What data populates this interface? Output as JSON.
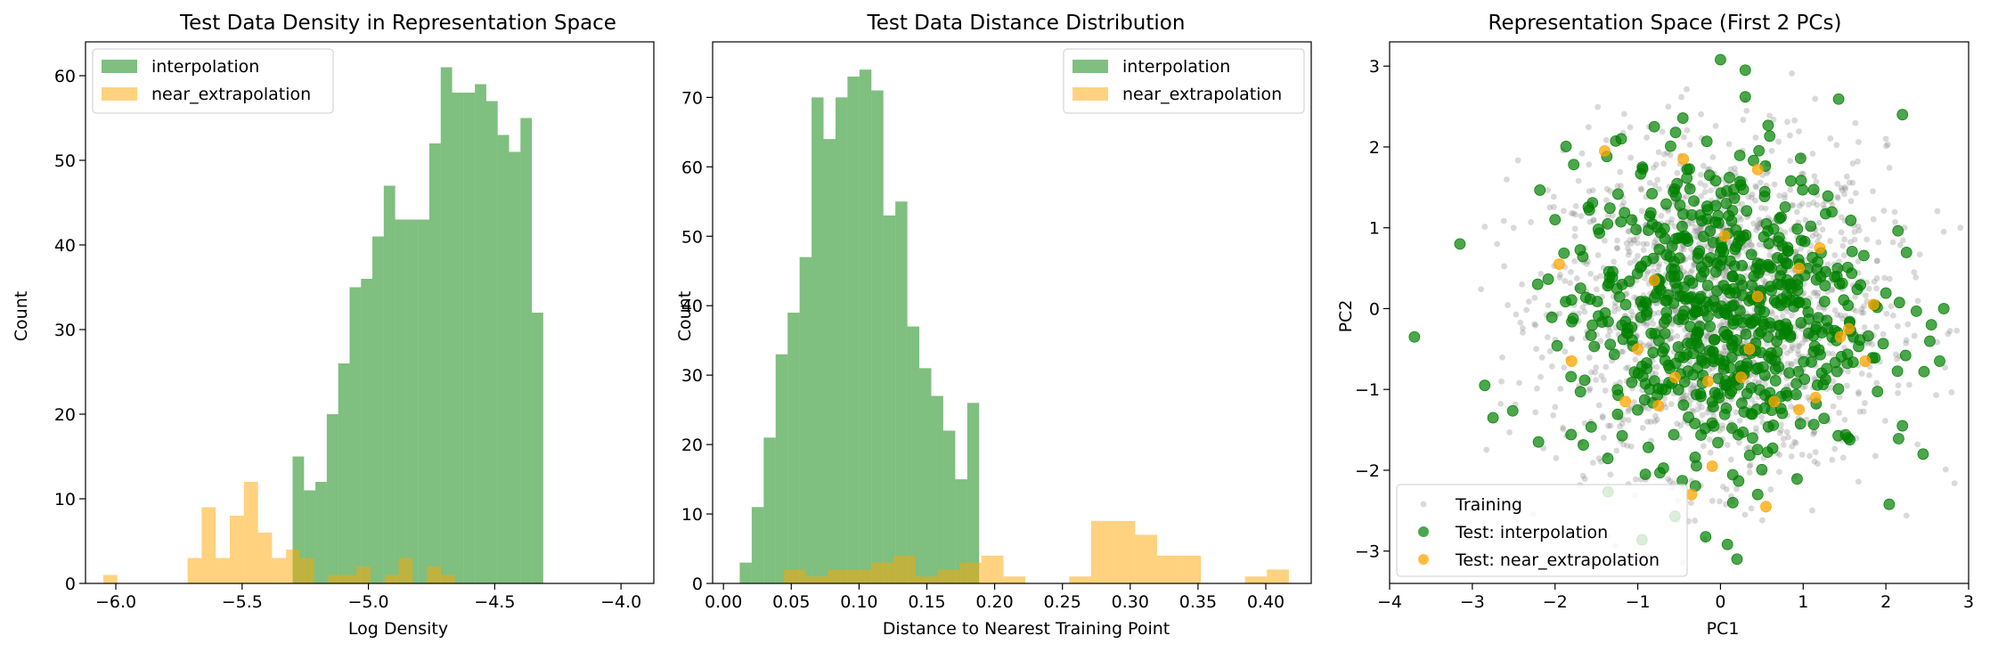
{
  "figure": {
    "background": "#ffffff",
    "colors": {
      "interpolation": "#008000",
      "near_extrapolation": "#ffa500",
      "training": "#808080"
    }
  },
  "chart_data": [
    {
      "type": "histogram",
      "title": "Test Data Density in Representation Space",
      "xlabel": "Log Density",
      "ylabel": "Count",
      "xlim": [
        -6.12,
        -3.87
      ],
      "ylim": [
        0,
        64
      ],
      "xticks": [
        -6.0,
        -5.5,
        -5.0,
        -4.5,
        -4.0
      ],
      "xtick_labels": [
        "−6.0",
        "−5.5",
        "−5.0",
        "−4.5",
        "−4.0"
      ],
      "yticks": [
        0,
        10,
        20,
        30,
        40,
        50,
        60
      ],
      "ytick_labels": [
        "0",
        "10",
        "20",
        "30",
        "40",
        "50",
        "60"
      ],
      "legend": {
        "placement": "upper left",
        "entries": [
          "interpolation",
          "near_extrapolation"
        ]
      },
      "series": [
        {
          "name": "interpolation",
          "color": "#008000",
          "alpha": 0.5,
          "bin_start": -5.3,
          "bin_width": 0.0451,
          "counts": [
            15,
            11,
            12,
            20,
            26,
            35,
            36,
            41,
            47,
            43,
            43,
            43,
            52,
            61,
            58,
            58,
            59,
            57,
            53,
            51,
            55,
            32
          ]
        },
        {
          "name": "near_extrapolation",
          "color": "#ffa500",
          "alpha": 0.5,
          "bin_start": -6.05,
          "bin_width": 0.0557,
          "counts": [
            1,
            0,
            0,
            0,
            0,
            0,
            3,
            9,
            3,
            8,
            12,
            6,
            3,
            4,
            3,
            0,
            1,
            1,
            2,
            0,
            1,
            3,
            0,
            2,
            1
          ]
        }
      ]
    },
    {
      "type": "histogram",
      "title": "Test Data Distance Distribution",
      "xlabel": "Distance to Nearest Training Point",
      "ylabel": "Count",
      "xlim": [
        -0.008,
        0.4335
      ],
      "ylim": [
        0,
        78
      ],
      "xticks": [
        0.0,
        0.05,
        0.1,
        0.15,
        0.2,
        0.25,
        0.3,
        0.35,
        0.4
      ],
      "xtick_labels": [
        "0.00",
        "0.05",
        "0.10",
        "0.15",
        "0.20",
        "0.25",
        "0.30",
        "0.35",
        "0.40"
      ],
      "yticks": [
        0,
        10,
        20,
        30,
        40,
        50,
        60,
        70
      ],
      "ytick_labels": [
        "0",
        "10",
        "20",
        "30",
        "40",
        "50",
        "60",
        "70"
      ],
      "legend": {
        "placement": "upper right",
        "entries": [
          "interpolation",
          "near_extrapolation"
        ]
      },
      "series": [
        {
          "name": "interpolation",
          "color": "#008000",
          "alpha": 0.5,
          "bin_start": 0.012,
          "bin_width": 0.00883,
          "counts": [
            3,
            11,
            21,
            33,
            39,
            47,
            70,
            64,
            70,
            73,
            74,
            71,
            53,
            55,
            37,
            31,
            27,
            22,
            15,
            26
          ]
        },
        {
          "name": "near_extrapolation",
          "color": "#ffa500",
          "alpha": 0.5,
          "bin_start": 0.012,
          "bin_width": 0.0162,
          "counts": [
            0,
            0,
            2,
            1,
            2,
            2,
            3,
            4,
            1,
            2,
            3,
            4,
            1,
            0,
            0,
            1,
            9,
            9,
            7,
            4,
            4,
            0,
            0,
            1,
            2
          ]
        }
      ]
    },
    {
      "type": "scatter",
      "title": "Representation Space (First 2 PCs)",
      "xlabel": "PC1",
      "ylabel": "PC2",
      "xlim": [
        -4.0,
        3.0
      ],
      "ylim": [
        -3.4,
        3.3
      ],
      "xticks": [
        -4,
        -3,
        -2,
        -1,
        0,
        1,
        2,
        3
      ],
      "xtick_labels": [
        "−4",
        "−3",
        "−2",
        "−1",
        "0",
        "1",
        "2",
        "3"
      ],
      "yticks": [
        -3,
        -2,
        -1,
        0,
        1,
        2,
        3
      ],
      "ytick_labels": [
        "−3",
        "−2",
        "−1",
        "0",
        "1",
        "2",
        "3"
      ],
      "legend": {
        "placement": "lower left",
        "entries": [
          "Training",
          "Test: interpolation",
          "Test: near_extrapolation"
        ]
      },
      "series": [
        {
          "name": "Training",
          "color": "#808080",
          "alpha": 0.3,
          "marker_size": "small",
          "distribution": {
            "center": [
              0,
              0
            ],
            "std": [
              1,
              1
            ],
            "count": 1800
          },
          "points": [
            [
              2.7,
              0.95
            ],
            [
              2.9,
              1.0
            ],
            [
              -2.5,
              1.0
            ],
            [
              -2.7,
              0.8
            ],
            [
              2.0,
              2.1
            ],
            [
              -2.4,
              0.3
            ]
          ]
        },
        {
          "name": "Test: interpolation",
          "color": "#008000",
          "alpha": 0.7,
          "marker_size": "large",
          "distribution": {
            "center": [
              0,
              0
            ],
            "std": [
              0.9,
              0.95
            ],
            "count": 650
          },
          "points": [
            [
              -3.7,
              -0.35
            ],
            [
              -3.15,
              0.8
            ],
            [
              0.0,
              3.08
            ],
            [
              0.3,
              2.95
            ],
            [
              0.3,
              2.62
            ],
            [
              2.2,
              2.4
            ],
            [
              -2.75,
              -1.35
            ],
            [
              -2.85,
              -0.95
            ],
            [
              0.2,
              -3.1
            ],
            [
              0.45,
              -2.3
            ],
            [
              2.65,
              -0.65
            ],
            [
              2.55,
              -0.2
            ],
            [
              2.7,
              0.0
            ],
            [
              2.2,
              -1.45
            ],
            [
              2.45,
              -1.8
            ],
            [
              -2.2,
              -1.65
            ],
            [
              -2.0,
              1.1
            ],
            [
              -1.2,
              2.1
            ],
            [
              -0.8,
              2.25
            ]
          ]
        },
        {
          "name": "Test: near_extrapolation",
          "color": "#ffa500",
          "alpha": 0.75,
          "marker_size": "large",
          "points": [
            [
              -1.4,
              1.95
            ],
            [
              -0.45,
              1.85
            ],
            [
              0.45,
              1.72
            ],
            [
              -1.95,
              0.55
            ],
            [
              -1.8,
              -0.65
            ],
            [
              -1.15,
              -1.15
            ],
            [
              -0.75,
              -1.2
            ],
            [
              -0.55,
              -0.85
            ],
            [
              -0.15,
              -0.9
            ],
            [
              0.25,
              -0.85
            ],
            [
              0.35,
              -0.5
            ],
            [
              0.65,
              -1.15
            ],
            [
              0.95,
              -1.25
            ],
            [
              1.15,
              -1.1
            ],
            [
              1.45,
              -0.35
            ],
            [
              1.75,
              -0.65
            ],
            [
              1.85,
              0.05
            ],
            [
              1.55,
              -0.25
            ],
            [
              0.95,
              0.5
            ],
            [
              -0.35,
              -2.3
            ],
            [
              -0.1,
              -1.95
            ],
            [
              0.55,
              -2.45
            ],
            [
              -1.0,
              -0.5
            ],
            [
              0.05,
              0.9
            ],
            [
              -0.8,
              0.35
            ],
            [
              0.45,
              0.15
            ],
            [
              1.2,
              0.75
            ]
          ]
        }
      ]
    }
  ]
}
